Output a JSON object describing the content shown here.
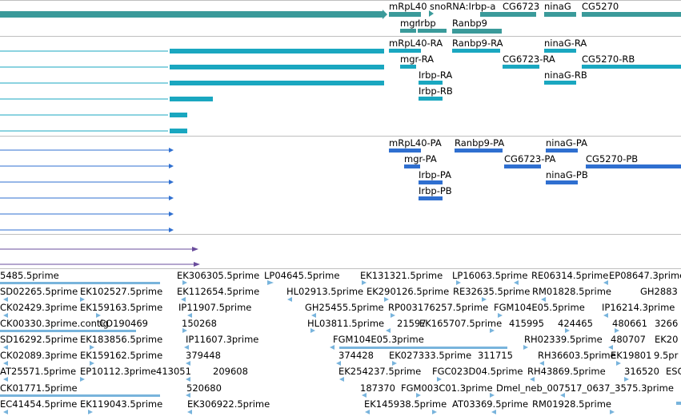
{
  "colors": {
    "gene": "#3a9a9a",
    "transcript": "#1aa7c0",
    "protein": "#2f6fd0",
    "other": "#6a4c9c",
    "est": "#78b4dc",
    "divider": "#bfbfbf"
  },
  "tracks": {
    "gene_labels": [
      {
        "text": "mRpL40"
      },
      {
        "text": "snoRNA:Irbp-a"
      },
      {
        "text": "CG6723"
      },
      {
        "text": "ninaG"
      },
      {
        "text": "CG5270"
      },
      {
        "text": "mgr"
      },
      {
        "text": "Irbp"
      },
      {
        "text": "Ranbp9"
      }
    ],
    "transcript_labels": [
      {
        "text": "mRpL40-RA"
      },
      {
        "text": "Ranbp9-RA"
      },
      {
        "text": "ninaG-RA"
      },
      {
        "text": "mgr-RA"
      },
      {
        "text": "CG6723-RA"
      },
      {
        "text": "CG5270-RB"
      },
      {
        "text": "Irbp-RA"
      },
      {
        "text": "ninaG-RB"
      },
      {
        "text": "Irbp-RB"
      }
    ],
    "protein_labels": [
      {
        "text": "mRpL40-PA"
      },
      {
        "text": "Ranbp9-PA"
      },
      {
        "text": "ninaG-PA"
      },
      {
        "text": "mgr-PA"
      },
      {
        "text": "CG6723-PA"
      },
      {
        "text": "CG5270-PB"
      },
      {
        "text": "Irbp-PA"
      },
      {
        "text": "ninaG-PB"
      },
      {
        "text": "Irbp-PB"
      }
    ],
    "est_labels": [
      {
        "text": "5485.5prime"
      },
      {
        "text": "EK306305.5prime"
      },
      {
        "text": "LP04645.5prime"
      },
      {
        "text": "EK131321.5prime"
      },
      {
        "text": "LP16063.5prime"
      },
      {
        "text": "RE06314.5prime"
      },
      {
        "text": "EP08647.3prime"
      },
      {
        "text": "SD02265.5prime"
      },
      {
        "text": "EK102527.5prime"
      },
      {
        "text": "EK112654.5prime"
      },
      {
        "text": "HL02913.5prime"
      },
      {
        "text": "EK290126.5prime"
      },
      {
        "text": "RE32635.5prime"
      },
      {
        "text": "RM01828.5prime"
      },
      {
        "text": "GH2883"
      },
      {
        "text": "CK02429.3prime"
      },
      {
        "text": "EK159163.5prime"
      },
      {
        "text": "IP11907.5prime"
      },
      {
        "text": "GH25455.5prime"
      },
      {
        "text": "RP003176257.5prime"
      },
      {
        "text": "FGM104E05.5prime"
      },
      {
        "text": "IP16214.3prime"
      },
      {
        "text": "CK00330.3prime.contig"
      },
      {
        "text": "CO190469"
      },
      {
        "text": "150268"
      },
      {
        "text": "HL03811.5prime"
      },
      {
        "text": "21597"
      },
      {
        "text": "EK165707.5prime"
      },
      {
        "text": "415995"
      },
      {
        "text": "424465"
      },
      {
        "text": "480661"
      },
      {
        "text": "3266"
      },
      {
        "text": "SD16292.5prime"
      },
      {
        "text": "EK183856.5prime"
      },
      {
        "text": "IP11607.3prime"
      },
      {
        "text": "FGM104E05.3prime"
      },
      {
        "text": "RH02339.5prime"
      },
      {
        "text": "480707"
      },
      {
        "text": "EK20"
      },
      {
        "text": "CK02089.3prime"
      },
      {
        "text": "EK159162.5prime"
      },
      {
        "text": "379448"
      },
      {
        "text": "374428"
      },
      {
        "text": "EK027333.5prime"
      },
      {
        "text": "311715"
      },
      {
        "text": "RH36603.5prime"
      },
      {
        "text": "EK19801"
      },
      {
        "text": "9.5pr"
      },
      {
        "text": "AT25571.5prime"
      },
      {
        "text": "EP10112.3prime"
      },
      {
        "text": "413051"
      },
      {
        "text": "209608"
      },
      {
        "text": "EK254237.5prime"
      },
      {
        "text": "FGC023D04.5prime"
      },
      {
        "text": "RH43869.5prime"
      },
      {
        "text": "316520"
      },
      {
        "text": "ESC"
      },
      {
        "text": "CK01771.5prime"
      },
      {
        "text": "520680"
      },
      {
        "text": "187370"
      },
      {
        "text": "FGM003C01.3prime"
      },
      {
        "text": "Dmel_neb_007517_0637_3575.3prime"
      },
      {
        "text": "EC41454.5prime"
      },
      {
        "text": "EK119043.5prime"
      },
      {
        "text": "EK306922.5prime"
      },
      {
        "text": "EK145938.5prime"
      },
      {
        "text": "AT03369.5prime"
      },
      {
        "text": "RM01928.5prime"
      }
    ]
  }
}
